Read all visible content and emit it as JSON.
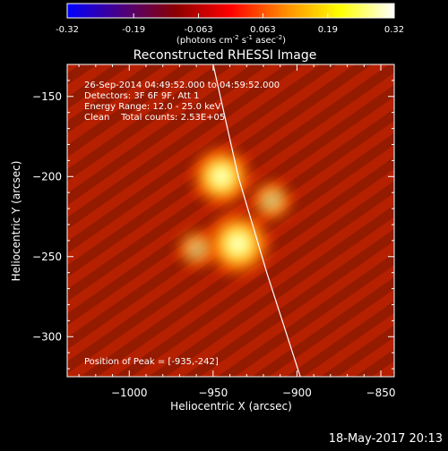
{
  "colorbar": {
    "tick_labels": [
      "-0.32",
      "-0.19",
      "-0.063",
      "0.063",
      "0.19",
      "0.32"
    ],
    "ticks": [
      -0.32,
      -0.19,
      -0.063,
      0.063,
      0.19,
      0.32
    ],
    "range": [
      -0.32,
      0.32
    ],
    "units_parts": [
      "(photons cm",
      "-2",
      " s",
      "-1",
      " asec",
      "-2",
      ")"
    ],
    "gradient_colors": [
      "#0000ff",
      "#4b0082",
      "#8b0000",
      "#ff0000",
      "#ff8c00",
      "#ffff00",
      "#ffffff"
    ]
  },
  "plot": {
    "title": "Reconstructed RHESSI Image",
    "xlabel": "Heliocentric X (arcsec)",
    "ylabel": "Heliocentric Y (arcsec)",
    "xlim": [
      -1037,
      -842
    ],
    "ylim": [
      -325,
      -130
    ],
    "x_ticks": [
      -1000,
      -950,
      -900,
      -850
    ],
    "x_tick_labels": [
      "−1000",
      "−950",
      "−900",
      "−850"
    ],
    "y_ticks": [
      -150,
      -200,
      -250,
      -300
    ],
    "y_tick_labels": [
      "−150",
      "−200",
      "−250",
      "−300"
    ],
    "info_lines": [
      "26-Sep-2014 04:49:52.000 to 04:59:52.000",
      "Detectors: 3F 6F 9F, Att 1",
      "Energy Range: 12.0 - 25.0 keV",
      "Clean    Total counts: 2.53E+05"
    ],
    "peak_text": "Position of Peak = [-935,-242]",
    "peak_position": [
      -935,
      -242
    ],
    "sources": [
      {
        "x": -945,
        "y": -200,
        "intensity": 0.85
      },
      {
        "x": -935,
        "y": -242,
        "intensity": 1.0
      },
      {
        "x": -915,
        "y": -215,
        "intensity": 0.35
      },
      {
        "x": -960,
        "y": -245,
        "intensity": 0.3
      }
    ],
    "limb_points": [
      [
        -950,
        -130
      ],
      [
        -935,
        -200
      ],
      [
        -918,
        -260
      ],
      [
        -898,
        -325
      ]
    ],
    "background_color": "#b52000"
  },
  "footer": {
    "timestamp": "18-May-2017 20:13"
  }
}
